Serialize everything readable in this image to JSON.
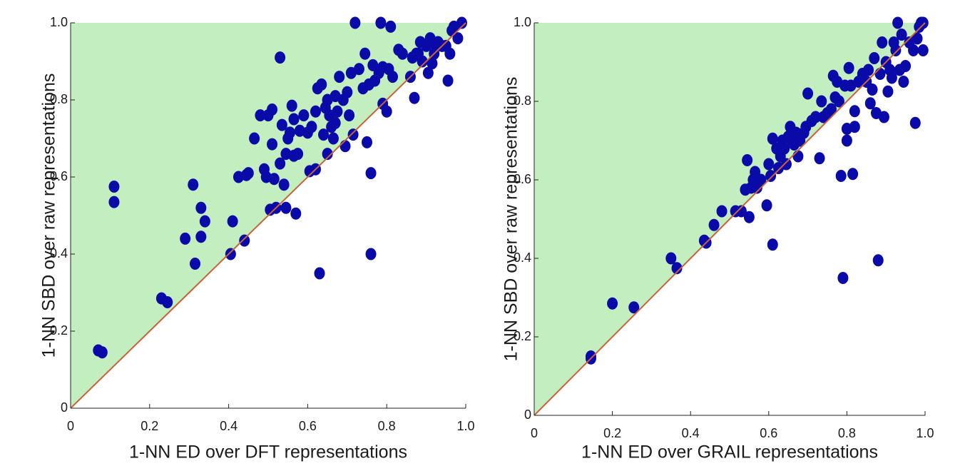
{
  "chart_data": [
    {
      "type": "scatter",
      "xlabel": "1-NN ED over DFT representations",
      "ylabel": "1-NN SBD over raw representations",
      "xlim": [
        0,
        1
      ],
      "ylim": [
        0,
        1
      ],
      "xticks": [
        0,
        0.2,
        0.4,
        0.6,
        0.8,
        {
          "value": 1,
          "label": "1.0"
        }
      ],
      "yticks": [
        0,
        0.2,
        0.4,
        0.6,
        0.8,
        {
          "value": 1,
          "label": "1.0"
        }
      ],
      "diagonal": true,
      "diagonal_color": "#c8623a",
      "region_color": "#c2eec0",
      "series": [
        {
          "color": "#0a0aa8",
          "x": [
            0.07,
            0.08,
            0.11,
            0.11,
            0.23,
            0.245,
            0.29,
            0.31,
            0.315,
            0.33,
            0.33,
            0.34,
            0.405,
            0.41,
            0.425,
            0.44,
            0.445,
            0.45,
            0.465,
            0.48,
            0.49,
            0.495,
            0.5,
            0.505,
            0.51,
            0.51,
            0.515,
            0.52,
            0.53,
            0.53,
            0.535,
            0.54,
            0.545,
            0.545,
            0.55,
            0.555,
            0.56,
            0.565,
            0.565,
            0.57,
            0.575,
            0.58,
            0.59,
            0.6,
            0.605,
            0.61,
            0.62,
            0.62,
            0.625,
            0.63,
            0.635,
            0.64,
            0.645,
            0.65,
            0.65,
            0.655,
            0.66,
            0.665,
            0.67,
            0.67,
            0.675,
            0.68,
            0.69,
            0.695,
            0.7,
            0.705,
            0.71,
            0.715,
            0.72,
            0.73,
            0.74,
            0.745,
            0.75,
            0.755,
            0.76,
            0.76,
            0.765,
            0.77,
            0.78,
            0.785,
            0.79,
            0.79,
            0.8,
            0.805,
            0.81,
            0.815,
            0.83,
            0.84,
            0.86,
            0.865,
            0.87,
            0.875,
            0.88,
            0.885,
            0.89,
            0.9,
            0.905,
            0.91,
            0.915,
            0.92,
            0.925,
            0.93,
            0.94,
            0.95,
            0.955,
            0.96,
            0.965,
            0.97,
            0.98,
            0.99
          ],
          "values": [
            0.15,
            0.145,
            0.575,
            0.535,
            0.285,
            0.275,
            0.44,
            0.58,
            0.375,
            0.52,
            0.445,
            0.485,
            0.4,
            0.485,
            0.6,
            0.435,
            0.605,
            0.61,
            0.7,
            0.76,
            0.62,
            0.6,
            0.76,
            0.515,
            0.775,
            0.685,
            0.595,
            0.52,
            0.91,
            0.635,
            0.735,
            0.58,
            0.66,
            0.52,
            0.7,
            0.715,
            0.785,
            0.75,
            0.655,
            0.505,
            0.66,
            0.72,
            0.76,
            0.715,
            0.615,
            0.73,
            0.62,
            0.77,
            0.83,
            0.35,
            0.84,
            0.71,
            0.78,
            0.66,
            0.8,
            0.76,
            0.73,
            0.7,
            0.81,
            0.74,
            0.77,
            0.86,
            0.8,
            0.68,
            0.82,
            0.76,
            0.87,
            0.71,
            1.0,
            0.88,
            0.83,
            0.92,
            0.69,
            0.84,
            0.61,
            0.4,
            0.89,
            0.85,
            0.87,
            1.0,
            0.79,
            0.885,
            0.77,
            0.88,
            0.99,
            0.86,
            0.93,
            0.92,
            0.86,
            0.91,
            0.805,
            0.92,
            0.92,
            0.95,
            0.9,
            0.94,
            0.87,
            0.96,
            0.895,
            0.92,
            0.94,
            0.95,
            0.94,
            0.94,
            0.85,
            0.92,
            0.98,
            0.99,
            0.96,
            1.0
          ]
        }
      ]
    },
    {
      "type": "scatter",
      "xlabel": "1-NN ED over GRAIL representations",
      "ylabel": "1-NN SBD over raw representations",
      "xlim": [
        0,
        1
      ],
      "ylim": [
        0,
        1
      ],
      "xticks": [
        0,
        0.2,
        0.4,
        0.6,
        0.8,
        {
          "value": 1,
          "label": "1.0"
        }
      ],
      "yticks": [
        0,
        0.2,
        0.4,
        0.6,
        0.8,
        {
          "value": 1,
          "label": "1.0"
        }
      ],
      "diagonal": true,
      "diagonal_color": "#c8623a",
      "region_color": "#c2eec0",
      "series": [
        {
          "color": "#0a0aa8",
          "x": [
            0.145,
            0.145,
            0.2,
            0.255,
            0.35,
            0.365,
            0.435,
            0.44,
            0.46,
            0.48,
            0.515,
            0.53,
            0.54,
            0.545,
            0.55,
            0.555,
            0.56,
            0.565,
            0.57,
            0.58,
            0.595,
            0.6,
            0.605,
            0.61,
            0.61,
            0.62,
            0.625,
            0.63,
            0.635,
            0.64,
            0.645,
            0.65,
            0.655,
            0.66,
            0.665,
            0.67,
            0.675,
            0.68,
            0.69,
            0.695,
            0.7,
            0.71,
            0.72,
            0.73,
            0.735,
            0.74,
            0.75,
            0.76,
            0.765,
            0.77,
            0.775,
            0.78,
            0.785,
            0.79,
            0.795,
            0.8,
            0.8,
            0.805,
            0.81,
            0.815,
            0.82,
            0.82,
            0.83,
            0.84,
            0.85,
            0.855,
            0.86,
            0.865,
            0.87,
            0.875,
            0.88,
            0.885,
            0.89,
            0.895,
            0.9,
            0.905,
            0.91,
            0.915,
            0.92,
            0.925,
            0.93,
            0.935,
            0.94,
            0.945,
            0.95,
            0.96,
            0.97,
            0.975,
            0.98,
            0.99,
            0.995,
            0.995,
            0.985
          ],
          "values": [
            0.15,
            0.145,
            0.285,
            0.275,
            0.4,
            0.375,
            0.445,
            0.44,
            0.485,
            0.52,
            0.52,
            0.52,
            0.575,
            0.65,
            0.505,
            0.58,
            0.6,
            0.62,
            0.58,
            0.6,
            0.535,
            0.64,
            0.61,
            0.435,
            0.705,
            0.68,
            0.63,
            0.66,
            0.7,
            0.68,
            0.64,
            0.71,
            0.735,
            0.7,
            0.69,
            0.72,
            0.66,
            0.7,
            0.72,
            0.735,
            0.82,
            0.75,
            0.76,
            0.655,
            0.8,
            0.76,
            0.77,
            0.78,
            0.865,
            0.81,
            0.85,
            0.8,
            0.61,
            0.35,
            0.84,
            0.73,
            0.7,
            0.885,
            0.84,
            0.615,
            0.775,
            0.735,
            0.85,
            0.87,
            0.85,
            0.88,
            0.795,
            0.83,
            0.91,
            0.77,
            0.395,
            0.87,
            0.95,
            0.76,
            0.9,
            0.825,
            0.88,
            0.86,
            0.95,
            0.93,
            1.0,
            0.88,
            0.97,
            0.85,
            0.89,
            0.95,
            0.93,
            0.745,
            0.96,
            1.0,
            1.0,
            0.93,
            0.99
          ]
        }
      ]
    }
  ]
}
